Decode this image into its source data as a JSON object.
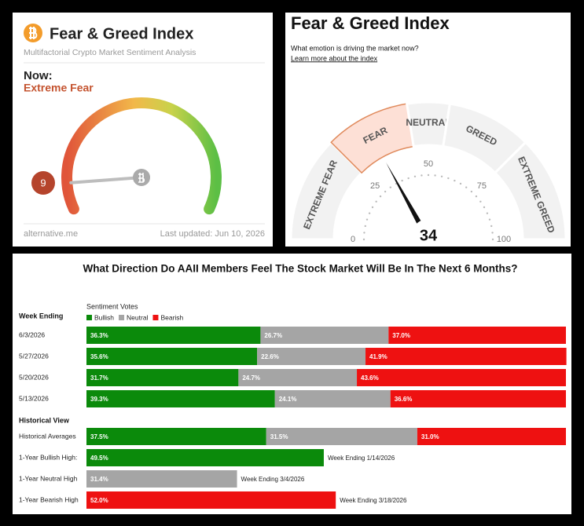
{
  "chart_data": [
    {
      "type": "gauge",
      "title": "Fear & Greed Index",
      "subtitle": "Multifactorial Crypto Market Sentiment Analysis",
      "now_label": "Now:",
      "classification": "Extreme Fear",
      "value": 9,
      "ylim": [
        0,
        100
      ],
      "source": "alternative.me",
      "updated": "Last updated: Jun 10, 2026"
    },
    {
      "type": "zone_gauge",
      "title": "Fear & Greed Index",
      "subtitle": "What emotion is driving the market now?",
      "link": "Learn more about the index",
      "value": 34,
      "ylim": [
        0,
        100
      ],
      "yticks": [
        0,
        25,
        50,
        75,
        100
      ],
      "zones": [
        {
          "label": "EXTREME FEAR",
          "range": [
            0,
            25
          ]
        },
        {
          "label": "FEAR",
          "range": [
            25,
            45
          ]
        },
        {
          "label": "NEUTRAL",
          "range": [
            45,
            55
          ]
        },
        {
          "label": "GREED",
          "range": [
            55,
            75
          ]
        },
        {
          "label": "EXTREME GREED",
          "range": [
            75,
            100
          ]
        }
      ]
    },
    {
      "type": "stacked_bar_h",
      "title": "What Direction Do AAII Members Feel The Stock Market Will Be In The Next 6 Months?",
      "legend_title": "Sentiment Votes",
      "xlim": [
        0,
        100
      ],
      "groups": [
        {
          "label": "Week Ending",
          "categories": [
            "6/3/2026",
            "5/27/2026",
            "5/20/2026",
            "5/13/2026"
          ]
        },
        {
          "label": "Historical View",
          "categories": [
            "Historical Averages",
            "1-Year Bullish High:",
            "1-Year Neutral High",
            "1-Year Bearish High"
          ]
        }
      ],
      "series": [
        {
          "name": "Bullish",
          "color": "#0b8a0b",
          "values": [
            36.3,
            35.6,
            31.7,
            39.3,
            37.5,
            49.5,
            null,
            null
          ],
          "value_labels": [
            "36.3%",
            "35.6%",
            "31.7%",
            "39.3%",
            "37.5%",
            "49.5%",
            null,
            null
          ]
        },
        {
          "name": "Neutral",
          "color": "#a5a5a5",
          "values": [
            26.7,
            22.6,
            24.7,
            24.1,
            31.5,
            null,
            31.4,
            null
          ],
          "value_labels": [
            "26.7%",
            "22.6%",
            "24.7%",
            "24.1%",
            "31.5%",
            null,
            "31.4%",
            null
          ]
        },
        {
          "name": "Bearish",
          "color": "#ee1111",
          "values": [
            37.0,
            41.9,
            43.6,
            36.6,
            31.0,
            null,
            null,
            52.0
          ],
          "value_labels": [
            "37.0%",
            "41.9%",
            "43.6%",
            "36.6%",
            "31.0%",
            null,
            null,
            "52.0%"
          ]
        }
      ],
      "notes": [
        null,
        null,
        null,
        null,
        null,
        "Week Ending 1/14/2026",
        "Week Ending 3/4/2026",
        "Week Ending 3/18/2026"
      ]
    }
  ]
}
